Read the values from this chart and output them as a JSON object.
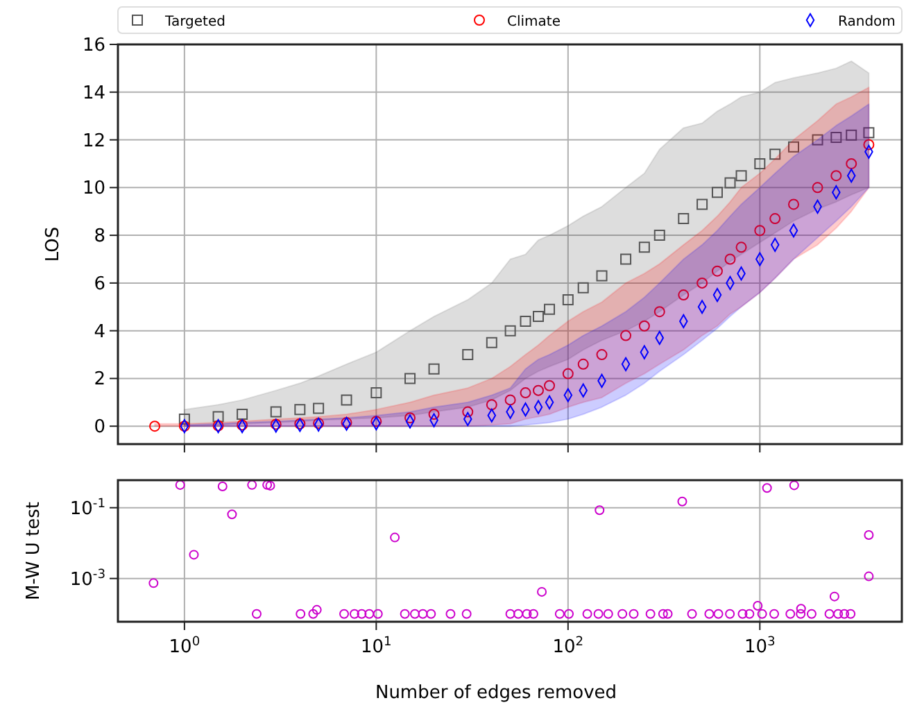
{
  "chart_data": [
    {
      "type": "scatter",
      "ylabel": "LOS",
      "log": "x",
      "grid": true,
      "legend": "top",
      "tick_labels": "y",
      "xlim": [
        0.45,
        5500
      ],
      "xticks": [
        {
          "value": 1,
          "label": null
        },
        {
          "value": 10,
          "label": null
        },
        {
          "value": 100,
          "label": null
        },
        {
          "value": 1000,
          "label": null
        }
      ],
      "ylim": [
        -0.75,
        16
      ],
      "yticks": [
        0,
        2,
        4,
        6,
        8,
        10,
        12,
        14,
        16
      ],
      "series": [
        {
          "name": "Targeted",
          "color": "#555555",
          "marker": "square",
          "x": [
            1,
            1.5,
            2,
            3,
            4,
            5,
            7,
            10,
            15,
            20,
            30,
            40,
            50,
            60,
            70,
            80,
            100,
            120,
            150,
            200,
            250,
            300,
            400,
            500,
            600,
            700,
            800,
            1000,
            1200,
            1500,
            2000,
            2500,
            3000,
            3700
          ],
          "values": [
            0.3,
            0.4,
            0.5,
            0.6,
            0.7,
            0.75,
            1.1,
            1.4,
            2.0,
            2.4,
            3.0,
            3.5,
            4.0,
            4.4,
            4.6,
            4.9,
            5.3,
            5.8,
            6.3,
            7.0,
            7.5,
            8.0,
            8.7,
            9.3,
            9.8,
            10.2,
            10.5,
            11.0,
            11.4,
            11.7,
            12.0,
            12.1,
            12.2,
            12.3
          ],
          "lower": [
            0,
            0.05,
            0.1,
            0.15,
            0.2,
            0.25,
            0.3,
            0.35,
            0.45,
            0.6,
            0.8,
            1.1,
            1.5,
            2.0,
            2.3,
            2.5,
            2.8,
            3.2,
            3.6,
            4.0,
            4.4,
            4.8,
            5.5,
            6.0,
            6.5,
            6.9,
            7.2,
            7.7,
            8.1,
            8.6,
            9.1,
            9.4,
            9.7,
            10.0
          ],
          "upper": [
            0.7,
            0.9,
            1.1,
            1.5,
            1.8,
            2.1,
            2.6,
            3.1,
            4.0,
            4.6,
            5.3,
            6.0,
            7.0,
            7.2,
            7.8,
            8.0,
            8.4,
            8.8,
            9.2,
            10.0,
            10.6,
            11.6,
            12.5,
            12.7,
            13.2,
            13.5,
            13.8,
            14.0,
            14.4,
            14.6,
            14.8,
            15.0,
            15.3,
            14.8
          ]
        },
        {
          "name": "Climate",
          "color": "#ff0000",
          "marker": "circle",
          "x": [
            0.7,
            1,
            1.5,
            2,
            3,
            4,
            5,
            7,
            10,
            15,
            20,
            30,
            40,
            50,
            60,
            70,
            80,
            100,
            120,
            150,
            200,
            250,
            300,
            400,
            500,
            600,
            700,
            800,
            1000,
            1200,
            1500,
            2000,
            2500,
            3000,
            3700
          ],
          "values": [
            0,
            0,
            0.02,
            0.05,
            0.08,
            0.1,
            0.12,
            0.15,
            0.2,
            0.35,
            0.5,
            0.6,
            0.9,
            1.1,
            1.4,
            1.5,
            1.7,
            2.2,
            2.6,
            3.0,
            3.8,
            4.2,
            4.8,
            5.5,
            6.0,
            6.5,
            7.0,
            7.5,
            8.2,
            8.7,
            9.3,
            10.0,
            10.5,
            11.0,
            11.8
          ],
          "lower": [
            0,
            0,
            0,
            0,
            0,
            0,
            0,
            0,
            0,
            0,
            0,
            0,
            0.05,
            0.1,
            0.3,
            0.4,
            0.5,
            0.8,
            1.0,
            1.2,
            1.8,
            2.2,
            2.6,
            3.2,
            3.8,
            4.2,
            4.7,
            5.0,
            5.6,
            6.2,
            7.0,
            7.6,
            8.3,
            9.0,
            10.0
          ],
          "upper": [
            0.1,
            0.1,
            0.15,
            0.2,
            0.3,
            0.35,
            0.4,
            0.5,
            0.7,
            1.0,
            1.3,
            1.6,
            2.0,
            2.5,
            3.0,
            3.4,
            3.8,
            4.4,
            4.8,
            5.2,
            6.0,
            6.4,
            6.8,
            7.6,
            8.2,
            8.8,
            9.4,
            10.0,
            10.6,
            11.2,
            12.0,
            12.8,
            13.5,
            13.8,
            14.2
          ]
        },
        {
          "name": "Random",
          "color": "#0000ff",
          "marker": "diamond",
          "x": [
            1,
            1.5,
            2,
            3,
            4,
            5,
            7,
            10,
            15,
            20,
            30,
            40,
            50,
            60,
            70,
            80,
            100,
            120,
            150,
            200,
            250,
            300,
            400,
            500,
            600,
            700,
            800,
            1000,
            1200,
            1500,
            2000,
            2500,
            3000,
            3700
          ],
          "values": [
            0,
            0,
            0,
            0.02,
            0.05,
            0.07,
            0.1,
            0.12,
            0.2,
            0.25,
            0.3,
            0.45,
            0.6,
            0.7,
            0.8,
            1.0,
            1.3,
            1.5,
            1.9,
            2.6,
            3.1,
            3.7,
            4.4,
            5.0,
            5.5,
            6.0,
            6.4,
            7.0,
            7.6,
            8.2,
            9.2,
            9.8,
            10.5,
            11.5
          ],
          "lower": [
            0,
            0,
            0,
            0,
            0,
            0,
            0,
            0,
            0,
            0,
            0,
            0,
            0,
            0.05,
            0.1,
            0.15,
            0.3,
            0.5,
            0.8,
            1.3,
            1.8,
            2.3,
            3.0,
            3.6,
            4.1,
            4.6,
            5.0,
            5.6,
            6.2,
            7.0,
            7.9,
            8.6,
            9.2,
            10.0
          ],
          "upper": [
            0.05,
            0.1,
            0.15,
            0.2,
            0.25,
            0.3,
            0.35,
            0.45,
            0.6,
            0.8,
            1.0,
            1.3,
            1.6,
            2.4,
            2.8,
            3.0,
            3.4,
            3.8,
            4.2,
            4.8,
            5.4,
            6.0,
            7.0,
            7.6,
            8.2,
            8.8,
            9.3,
            10.0,
            10.6,
            11.3,
            12.0,
            12.6,
            13.0,
            13.5
          ]
        }
      ]
    },
    {
      "type": "scatter",
      "xlabel": "Number of edges removed",
      "ylabel": "M-W U test",
      "log": "xy",
      "grid": true,
      "xlim": [
        0.45,
        5500
      ],
      "xticks": [
        {
          "value": 1,
          "label": "10$^{0}$"
        },
        {
          "value": 10,
          "label": "10$^{1}$"
        },
        {
          "value": 100,
          "label": "10$^{2}$"
        },
        {
          "value": 1000,
          "label": "10$^{3}$"
        }
      ],
      "ylim": [
        6e-05,
        0.6
      ],
      "yticks": [
        {
          "value": 0.1,
          "label": "10$^{-1}$"
        },
        {
          "value": 0.001,
          "label": "10$^{-3}$"
        }
      ],
      "series": [
        {
          "color": "#cc00cc",
          "marker": "circle",
          "x": [
            0.69,
            0.95,
            1.12,
            1.58,
            1.77,
            2.25,
            2.7,
            2.8,
            146,
            394,
            1090,
            1510,
            3700,
            3700,
            12.5,
            73,
            975,
            2450,
            1640,
            4.9,
            2.38,
            4.03,
            4.69,
            6.8,
            7.7,
            8.4,
            9.2,
            10.2,
            14.1,
            15.9,
            17.5,
            19.3,
            24.4,
            29.6,
            50,
            55,
            61,
            66,
            90.5,
            101,
            126,
            144,
            162,
            192,
            220,
            269,
            313,
            331,
            443,
            545,
            608,
            698,
            813,
            883,
            1028,
            1188,
            1442,
            1633,
            1862,
            2305,
            2559,
            2757,
            2974
          ],
          "values": [
            0.00074,
            0.44,
            0.0047,
            0.4,
            0.065,
            0.44,
            0.44,
            0.42,
            0.085,
            0.15,
            0.36,
            0.43,
            0.017,
            0.00115,
            0.0144,
            0.00042,
            0.00017,
            0.00031,
            0.00014,
            0.00013,
            0.0001,
            0.0001,
            0.0001,
            0.0001,
            0.0001,
            0.0001,
            0.0001,
            0.0001,
            0.0001,
            0.0001,
            0.0001,
            0.0001,
            0.0001,
            0.0001,
            0.0001,
            0.0001,
            0.0001,
            0.0001,
            0.0001,
            0.0001,
            0.0001,
            0.0001,
            0.0001,
            0.0001,
            0.0001,
            0.0001,
            0.0001,
            0.0001,
            0.0001,
            0.0001,
            0.0001,
            0.0001,
            0.0001,
            0.0001,
            0.0001,
            0.0001,
            0.0001,
            0.0001,
            0.0001,
            0.0001,
            0.0001,
            0.0001,
            0.0001
          ]
        }
      ]
    }
  ]
}
